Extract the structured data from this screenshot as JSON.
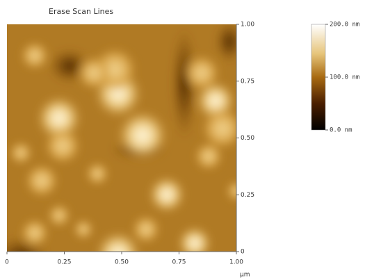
{
  "title": "Erase Scan Lines",
  "x_axis": {
    "ticks": [
      "0",
      "0.25",
      "0.50",
      "0.75",
      "1.00"
    ],
    "unit": "µm"
  },
  "y_axis": {
    "ticks": [
      "0",
      "0.25",
      "0.50",
      "0.75",
      "1.00"
    ]
  },
  "colorbar": {
    "labels": [
      "0.0 nm",
      "100.0 nm",
      "200.0 nm"
    ]
  }
}
